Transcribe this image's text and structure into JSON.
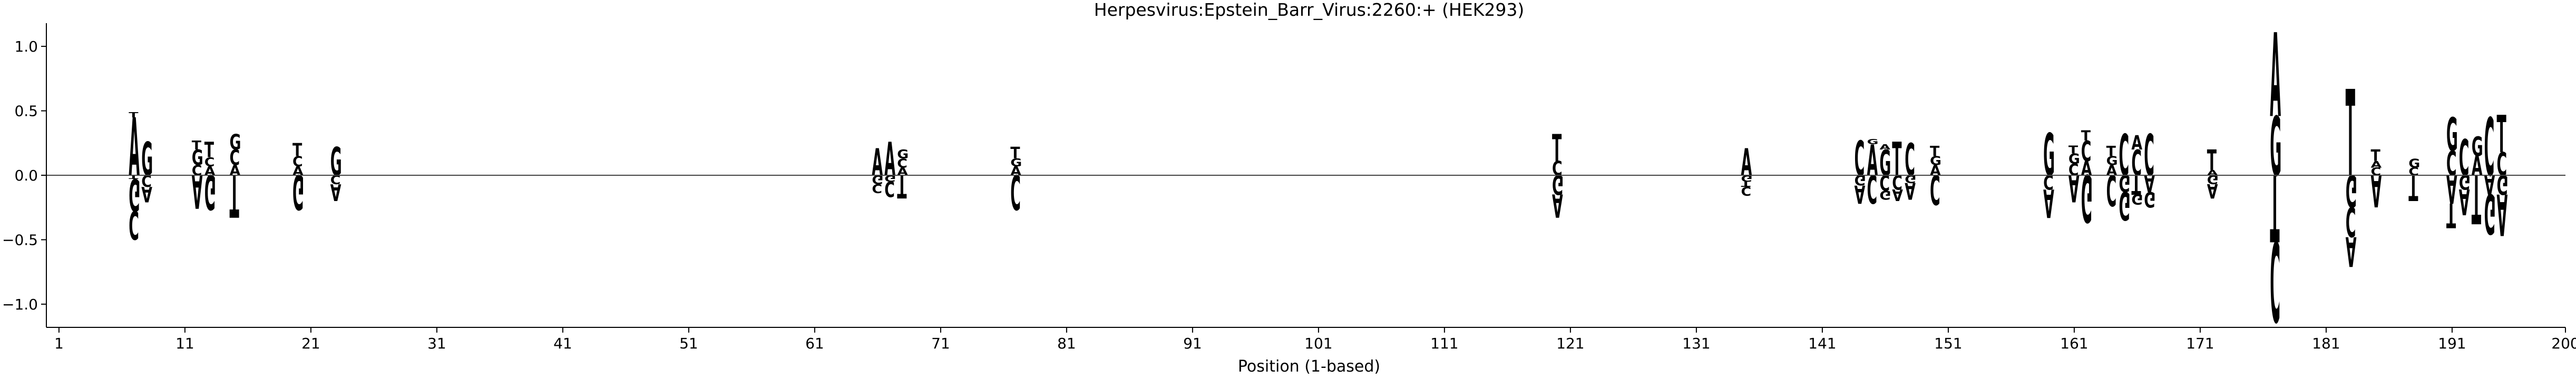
{
  "chart_data": {
    "type": "sequence-logo",
    "title": "Herpesvirus:Epstein_Barr_Virus:2260:+  (HEK293)",
    "xlabel": "Position (1-based)",
    "ylabel": "",
    "xlim": [
      0,
      200
    ],
    "ylim": [
      -1.18,
      1.18
    ],
    "xticks": [
      1,
      11,
      21,
      31,
      41,
      51,
      61,
      71,
      81,
      91,
      101,
      111,
      121,
      131,
      141,
      151,
      161,
      171,
      181,
      191,
      200
    ],
    "xtick_labels": [
      "1",
      "11",
      "21",
      "31",
      "41",
      "51",
      "61",
      "71",
      "81",
      "91",
      "101",
      "111",
      "121",
      "131",
      "141",
      "151",
      "161",
      "171",
      "181",
      "191",
      "200"
    ],
    "yticks": [
      -1.0,
      -0.5,
      0.0,
      0.5,
      1.0
    ],
    "ytick_labels": [
      "−1.0",
      "−0.5",
      "0.0",
      "0.5",
      "1.0"
    ],
    "colors": {
      "A": "#008000",
      "C": "#0000cc",
      "G": "#ffa500",
      "T": "#ff0000"
    },
    "positions": [
      {
        "pos": 7,
        "up": [
          [
            "A",
            0.45
          ],
          [
            "T",
            0.04
          ]
        ],
        "down": [
          [
            "T",
            0.03
          ],
          [
            "G",
            0.25
          ],
          [
            "C",
            0.22
          ]
        ]
      },
      {
        "pos": 8,
        "up": [
          [
            "G",
            0.26
          ]
        ],
        "down": [
          [
            "C",
            0.09
          ],
          [
            "A",
            0.12
          ]
        ]
      },
      {
        "pos": 12,
        "up": [
          [
            "C",
            0.08
          ],
          [
            "G",
            0.12
          ],
          [
            "T",
            0.07
          ]
        ],
        "down": [
          [
            "A",
            0.26
          ]
        ]
      },
      {
        "pos": 13,
        "up": [
          [
            "A",
            0.07
          ],
          [
            "C",
            0.07
          ],
          [
            "T",
            0.12
          ]
        ],
        "down": [
          [
            "G",
            0.27
          ]
        ]
      },
      {
        "pos": 15,
        "up": [
          [
            "A",
            0.08
          ],
          [
            "C",
            0.12
          ],
          [
            "G",
            0.12
          ]
        ],
        "down": [
          [
            "T",
            0.33
          ]
        ]
      },
      {
        "pos": 20,
        "up": [
          [
            "A",
            0.07
          ],
          [
            "C",
            0.08
          ],
          [
            "T",
            0.1
          ]
        ],
        "down": [
          [
            "G",
            0.27
          ]
        ]
      },
      {
        "pos": 23,
        "up": [
          [
            "G",
            0.22
          ]
        ],
        "down": [
          [
            "C",
            0.07
          ],
          [
            "A",
            0.13
          ]
        ]
      },
      {
        "pos": 66,
        "up": [
          [
            "A",
            0.21
          ]
        ],
        "down": [
          [
            "G",
            0.07
          ],
          [
            "C",
            0.07
          ]
        ]
      },
      {
        "pos": 67,
        "up": [
          [
            "A",
            0.26
          ]
        ],
        "down": [
          [
            "G",
            0.05
          ],
          [
            "C",
            0.12
          ]
        ]
      },
      {
        "pos": 68,
        "up": [
          [
            "A",
            0.06
          ],
          [
            "C",
            0.07
          ],
          [
            "G",
            0.07
          ]
        ],
        "down": [
          [
            "T",
            0.18
          ]
        ]
      },
      {
        "pos": 77,
        "up": [
          [
            "A",
            0.07
          ],
          [
            "G",
            0.06
          ],
          [
            "T",
            0.09
          ]
        ],
        "down": [
          [
            "C",
            0.27
          ]
        ]
      },
      {
        "pos": 120,
        "up": [
          [
            "C",
            0.11
          ],
          [
            "T",
            0.21
          ]
        ],
        "down": [
          [
            "G",
            0.15
          ],
          [
            "A",
            0.18
          ]
        ]
      },
      {
        "pos": 135,
        "up": [
          [
            "A",
            0.21
          ]
        ],
        "down": [
          [
            "G",
            0.05
          ],
          [
            "T",
            0.04
          ],
          [
            "C",
            0.07
          ]
        ]
      },
      {
        "pos": 144,
        "up": [
          [
            "C",
            0.27
          ]
        ],
        "down": [
          [
            "G",
            0.08
          ],
          [
            "A",
            0.14
          ]
        ]
      },
      {
        "pos": 145,
        "up": [
          [
            "A",
            0.24
          ],
          [
            "G",
            0.04
          ]
        ],
        "down": [
          [
            "C",
            0.22
          ]
        ]
      },
      {
        "pos": 146,
        "up": [
          [
            "G",
            0.2
          ],
          [
            "A",
            0.04
          ]
        ],
        "down": [
          [
            "C",
            0.12
          ],
          [
            "G",
            0.07
          ]
        ]
      },
      {
        "pos": 147,
        "up": [
          [
            "T",
            0.26
          ]
        ],
        "down": [
          [
            "C",
            0.11
          ],
          [
            "A",
            0.09
          ]
        ]
      },
      {
        "pos": 148,
        "up": [
          [
            "C",
            0.25
          ]
        ],
        "down": [
          [
            "G",
            0.06
          ],
          [
            "A",
            0.13
          ]
        ]
      },
      {
        "pos": 150,
        "up": [
          [
            "A",
            0.08
          ],
          [
            "G",
            0.07
          ],
          [
            "T",
            0.08
          ]
        ],
        "down": [
          [
            "C",
            0.23
          ]
        ]
      },
      {
        "pos": 159,
        "up": [
          [
            "G",
            0.33
          ]
        ],
        "down": [
          [
            "C",
            0.11
          ],
          [
            "A",
            0.22
          ]
        ]
      },
      {
        "pos": 161,
        "up": [
          [
            "C",
            0.09
          ],
          [
            "G",
            0.08
          ],
          [
            "T",
            0.06
          ]
        ],
        "down": [
          [
            "A",
            0.21
          ]
        ]
      },
      {
        "pos": 162,
        "up": [
          [
            "A",
            0.11
          ],
          [
            "C",
            0.16
          ],
          [
            "T",
            0.08
          ]
        ],
        "down": [
          [
            "G",
            0.37
          ]
        ]
      },
      {
        "pos": 164,
        "up": [
          [
            "A",
            0.08
          ],
          [
            "G",
            0.07
          ],
          [
            "T",
            0.08
          ]
        ],
        "down": [
          [
            "C",
            0.24
          ]
        ]
      },
      {
        "pos": 165,
        "up": [
          [
            "C",
            0.32
          ]
        ],
        "down": [
          [
            "G",
            0.13
          ],
          [
            "G",
            0.22
          ]
        ]
      },
      {
        "pos": 166,
        "up": [
          [
            "C",
            0.2
          ],
          [
            "A",
            0.11
          ]
        ],
        "down": [
          [
            "T",
            0.15
          ],
          [
            "G",
            0.08
          ]
        ]
      },
      {
        "pos": 167,
        "up": [
          [
            "C",
            0.32
          ]
        ],
        "down": [
          [
            "A",
            0.13
          ],
          [
            "G",
            0.12
          ]
        ]
      },
      {
        "pos": 172,
        "up": [
          [
            "A",
            0.04
          ],
          [
            "T",
            0.16
          ]
        ],
        "down": [
          [
            "G",
            0.07
          ],
          [
            "A",
            0.11
          ]
        ]
      },
      {
        "pos": 177,
        "up": [
          [
            "G",
            0.46
          ],
          [
            "A",
            0.65
          ]
        ],
        "down": [
          [
            "T",
            0.52
          ],
          [
            "C",
            0.62
          ]
        ]
      },
      {
        "pos": 183,
        "up": [
          [
            "T",
            0.67
          ]
        ],
        "down": [
          [
            "G",
            0.25
          ],
          [
            "C",
            0.23
          ],
          [
            "A",
            0.23
          ]
        ]
      },
      {
        "pos": 185,
        "up": [
          [
            "C",
            0.06
          ],
          [
            "A",
            0.05
          ],
          [
            "T",
            0.09
          ]
        ],
        "down": [
          [
            "A",
            0.25
          ]
        ]
      },
      {
        "pos": 188,
        "up": [
          [
            "C",
            0.06
          ],
          [
            "G",
            0.07
          ]
        ],
        "down": [
          [
            "T",
            0.2
          ]
        ]
      },
      {
        "pos": 191,
        "up": [
          [
            "C",
            0.19
          ],
          [
            "G",
            0.26
          ]
        ],
        "down": [
          [
            "A",
            0.22
          ],
          [
            "T",
            0.19
          ]
        ]
      },
      {
        "pos": 192,
        "up": [
          [
            "C",
            0.28
          ]
        ],
        "down": [
          [
            "G",
            0.11
          ],
          [
            "A",
            0.2
          ]
        ]
      },
      {
        "pos": 193,
        "up": [
          [
            "A",
            0.15
          ],
          [
            "G",
            0.15
          ]
        ],
        "down": [
          [
            "T",
            0.38
          ]
        ]
      },
      {
        "pos": 194,
        "up": [
          [
            "C",
            0.45
          ]
        ],
        "down": [
          [
            "A",
            0.15
          ],
          [
            "G",
            0.31
          ]
        ]
      },
      {
        "pos": 195,
        "up": [
          [
            "C",
            0.18
          ],
          [
            "T",
            0.29
          ]
        ],
        "down": [
          [
            "G",
            0.15
          ],
          [
            "A",
            0.32
          ]
        ]
      }
    ]
  }
}
